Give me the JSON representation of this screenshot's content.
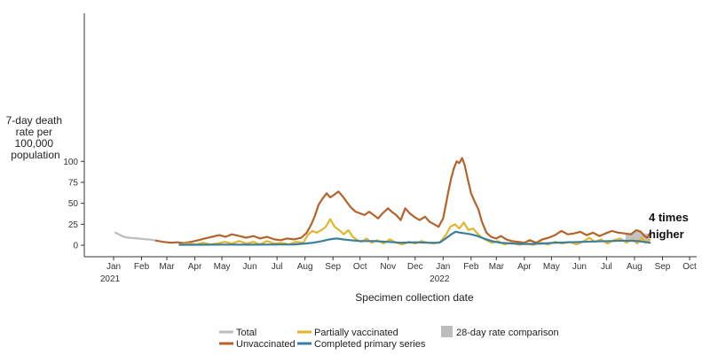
{
  "chart_data": {
    "type": "line",
    "title": "",
    "xlabel": "Specimen collection date",
    "ylabel": [
      "7-day death",
      "rate per",
      "100,000",
      "population"
    ],
    "x_range": [
      "2021-01-01",
      "2022-10-01"
    ],
    "ylim": [
      -5,
      110
    ],
    "y_ticks": [
      0,
      25,
      50,
      75,
      100
    ],
    "x_ticks": [
      {
        "date": "2021-01-01",
        "label": "Jan",
        "year": "2021"
      },
      {
        "date": "2021-02-01",
        "label": "Feb"
      },
      {
        "date": "2021-03-01",
        "label": "Mar"
      },
      {
        "date": "2021-04-01",
        "label": "Apr"
      },
      {
        "date": "2021-05-01",
        "label": "May"
      },
      {
        "date": "2021-06-01",
        "label": "Jun"
      },
      {
        "date": "2021-07-01",
        "label": "Jul"
      },
      {
        "date": "2021-08-01",
        "label": "Aug"
      },
      {
        "date": "2021-09-01",
        "label": "Sep"
      },
      {
        "date": "2021-10-01",
        "label": "Oct"
      },
      {
        "date": "2021-11-01",
        "label": "Nov"
      },
      {
        "date": "2021-12-01",
        "label": "Dec"
      },
      {
        "date": "2022-01-01",
        "label": "Jan",
        "year": "2022"
      },
      {
        "date": "2022-02-01",
        "label": "Feb"
      },
      {
        "date": "2022-03-01",
        "label": "Mar"
      },
      {
        "date": "2022-04-01",
        "label": "Apr"
      },
      {
        "date": "2022-05-01",
        "label": "May"
      },
      {
        "date": "2022-06-01",
        "label": "Jun"
      },
      {
        "date": "2022-07-01",
        "label": "Jul"
      },
      {
        "date": "2022-08-01",
        "label": "Aug"
      },
      {
        "date": "2022-09-01",
        "label": "Sep"
      },
      {
        "date": "2022-10-01",
        "label": "Oct"
      }
    ],
    "grid": false,
    "legend_position": "bottom",
    "series": [
      {
        "name": "Total",
        "color": "#bdbdbd",
        "points": [
          [
            "2021-01-03",
            15
          ],
          [
            "2021-01-07",
            13
          ],
          [
            "2021-01-10",
            11
          ],
          [
            "2021-01-14",
            9.5
          ],
          [
            "2021-01-18",
            9
          ],
          [
            "2021-01-23",
            8.5
          ],
          [
            "2021-01-28",
            8
          ],
          [
            "2021-02-02",
            7.5
          ],
          [
            "2021-02-07",
            7
          ],
          [
            "2021-02-12",
            6.5
          ],
          [
            "2021-02-17",
            5.5
          ]
        ]
      },
      {
        "name": "Unvaccinated",
        "color": "#b5622b",
        "points": [
          [
            "2021-02-17",
            5.5
          ],
          [
            "2021-02-25",
            4
          ],
          [
            "2021-03-05",
            3
          ],
          [
            "2021-03-13",
            3.5
          ],
          [
            "2021-03-20",
            2.5
          ],
          [
            "2021-03-28",
            4
          ],
          [
            "2021-04-05",
            6
          ],
          [
            "2021-04-12",
            8
          ],
          [
            "2021-04-20",
            10
          ],
          [
            "2021-04-28",
            12
          ],
          [
            "2021-05-05",
            10
          ],
          [
            "2021-05-12",
            13
          ],
          [
            "2021-05-20",
            11
          ],
          [
            "2021-05-28",
            9
          ],
          [
            "2021-06-05",
            11
          ],
          [
            "2021-06-12",
            8
          ],
          [
            "2021-06-20",
            10
          ],
          [
            "2021-06-28",
            7
          ],
          [
            "2021-07-05",
            6
          ],
          [
            "2021-07-12",
            8
          ],
          [
            "2021-07-20",
            7
          ],
          [
            "2021-07-28",
            9
          ],
          [
            "2021-08-03",
            15
          ],
          [
            "2021-08-08",
            25
          ],
          [
            "2021-08-12",
            35
          ],
          [
            "2021-08-16",
            48
          ],
          [
            "2021-08-20",
            55
          ],
          [
            "2021-08-25",
            62
          ],
          [
            "2021-08-29",
            57
          ],
          [
            "2021-09-02",
            60
          ],
          [
            "2021-09-07",
            64
          ],
          [
            "2021-09-12",
            58
          ],
          [
            "2021-09-16",
            52
          ],
          [
            "2021-09-21",
            45
          ],
          [
            "2021-09-26",
            40
          ],
          [
            "2021-10-01",
            38
          ],
          [
            "2021-10-06",
            36
          ],
          [
            "2021-10-11",
            40
          ],
          [
            "2021-10-16",
            36
          ],
          [
            "2021-10-21",
            32
          ],
          [
            "2021-10-26",
            38
          ],
          [
            "2021-11-01",
            44
          ],
          [
            "2021-11-05",
            40
          ],
          [
            "2021-11-10",
            36
          ],
          [
            "2021-11-15",
            30
          ],
          [
            "2021-11-20",
            44
          ],
          [
            "2021-11-25",
            38
          ],
          [
            "2021-12-01",
            33
          ],
          [
            "2021-12-06",
            30
          ],
          [
            "2021-12-12",
            34
          ],
          [
            "2021-12-17",
            28
          ],
          [
            "2021-12-22",
            25
          ],
          [
            "2021-12-27",
            22
          ],
          [
            "2022-01-01",
            32
          ],
          [
            "2022-01-04",
            48
          ],
          [
            "2022-01-07",
            65
          ],
          [
            "2022-01-10",
            80
          ],
          [
            "2022-01-13",
            92
          ],
          [
            "2022-01-16",
            100
          ],
          [
            "2022-01-19",
            98
          ],
          [
            "2022-01-22",
            104
          ],
          [
            "2022-01-25",
            95
          ],
          [
            "2022-01-28",
            80
          ],
          [
            "2022-02-01",
            62
          ],
          [
            "2022-02-05",
            52
          ],
          [
            "2022-02-09",
            43
          ],
          [
            "2022-02-13",
            28
          ],
          [
            "2022-02-18",
            15
          ],
          [
            "2022-02-23",
            10
          ],
          [
            "2022-03-01",
            8
          ],
          [
            "2022-03-06",
            11
          ],
          [
            "2022-03-12",
            7
          ],
          [
            "2022-03-18",
            5
          ],
          [
            "2022-03-25",
            4
          ],
          [
            "2022-04-01",
            3
          ],
          [
            "2022-04-07",
            6
          ],
          [
            "2022-04-14",
            3
          ],
          [
            "2022-04-21",
            7
          ],
          [
            "2022-04-28",
            9
          ],
          [
            "2022-05-05",
            12
          ],
          [
            "2022-05-12",
            17
          ],
          [
            "2022-05-19",
            13
          ],
          [
            "2022-05-26",
            14
          ],
          [
            "2022-06-02",
            16
          ],
          [
            "2022-06-09",
            12
          ],
          [
            "2022-06-16",
            15
          ],
          [
            "2022-06-23",
            11
          ],
          [
            "2022-06-30",
            14
          ],
          [
            "2022-07-07",
            17
          ],
          [
            "2022-07-14",
            15
          ],
          [
            "2022-07-21",
            14
          ],
          [
            "2022-07-28",
            13
          ],
          [
            "2022-08-03",
            18
          ],
          [
            "2022-08-08",
            16
          ],
          [
            "2022-08-12",
            11
          ],
          [
            "2022-08-15",
            9
          ],
          [
            "2022-08-18",
            14
          ]
        ]
      },
      {
        "name": "Partially vaccinated",
        "color": "#e3b52c",
        "points": [
          [
            "2021-03-15",
            1
          ],
          [
            "2021-03-25",
            2
          ],
          [
            "2021-04-02",
            1
          ],
          [
            "2021-04-10",
            3
          ],
          [
            "2021-04-18",
            1
          ],
          [
            "2021-04-26",
            2
          ],
          [
            "2021-05-04",
            4
          ],
          [
            "2021-05-12",
            2
          ],
          [
            "2021-05-20",
            5
          ],
          [
            "2021-05-28",
            2
          ],
          [
            "2021-06-05",
            4
          ],
          [
            "2021-06-12",
            1
          ],
          [
            "2021-06-20",
            5
          ],
          [
            "2021-06-28",
            2
          ],
          [
            "2021-07-06",
            3
          ],
          [
            "2021-07-14",
            1
          ],
          [
            "2021-07-22",
            4
          ],
          [
            "2021-07-30",
            3
          ],
          [
            "2021-08-04",
            12
          ],
          [
            "2021-08-09",
            17
          ],
          [
            "2021-08-14",
            15
          ],
          [
            "2021-08-19",
            18
          ],
          [
            "2021-08-24",
            22
          ],
          [
            "2021-08-29",
            31
          ],
          [
            "2021-09-03",
            22
          ],
          [
            "2021-09-08",
            18
          ],
          [
            "2021-09-13",
            13
          ],
          [
            "2021-09-18",
            18
          ],
          [
            "2021-09-23",
            10
          ],
          [
            "2021-09-28",
            6
          ],
          [
            "2021-10-03",
            4
          ],
          [
            "2021-10-08",
            8
          ],
          [
            "2021-10-14",
            3
          ],
          [
            "2021-10-20",
            6
          ],
          [
            "2021-10-27",
            2
          ],
          [
            "2021-11-03",
            7
          ],
          [
            "2021-11-10",
            3
          ],
          [
            "2021-11-17",
            1
          ],
          [
            "2021-11-24",
            4
          ],
          [
            "2021-12-01",
            2
          ],
          [
            "2021-12-08",
            5
          ],
          [
            "2021-12-15",
            3
          ],
          [
            "2021-12-22",
            2
          ],
          [
            "2021-12-29",
            4
          ],
          [
            "2022-01-04",
            12
          ],
          [
            "2022-01-09",
            22
          ],
          [
            "2022-01-14",
            25
          ],
          [
            "2022-01-19",
            20
          ],
          [
            "2022-01-24",
            27
          ],
          [
            "2022-01-29",
            18
          ],
          [
            "2022-02-03",
            20
          ],
          [
            "2022-02-08",
            14
          ],
          [
            "2022-02-13",
            9
          ],
          [
            "2022-02-18",
            6
          ],
          [
            "2022-02-24",
            3
          ],
          [
            "2022-03-03",
            5
          ],
          [
            "2022-03-10",
            1
          ],
          [
            "2022-03-18",
            3
          ],
          [
            "2022-03-26",
            0.5
          ],
          [
            "2022-04-03",
            2
          ],
          [
            "2022-04-11",
            0.5
          ],
          [
            "2022-04-19",
            3
          ],
          [
            "2022-04-27",
            1
          ],
          [
            "2022-05-05",
            4
          ],
          [
            "2022-05-13",
            2
          ],
          [
            "2022-05-21",
            4
          ],
          [
            "2022-05-29",
            1
          ],
          [
            "2022-06-06",
            5
          ],
          [
            "2022-06-12",
            9
          ],
          [
            "2022-06-18",
            4
          ],
          [
            "2022-06-25",
            7
          ],
          [
            "2022-07-02",
            2
          ],
          [
            "2022-07-09",
            6
          ],
          [
            "2022-07-16",
            8
          ],
          [
            "2022-07-23",
            3
          ],
          [
            "2022-07-30",
            7
          ],
          [
            "2022-08-04",
            2
          ],
          [
            "2022-08-09",
            9
          ],
          [
            "2022-08-13",
            3
          ],
          [
            "2022-08-18",
            6
          ]
        ]
      },
      {
        "name": "Completed primary series",
        "color": "#3a7ea1",
        "points": [
          [
            "2021-03-15",
            0.5
          ],
          [
            "2021-04-01",
            0.5
          ],
          [
            "2021-05-01",
            0.7
          ],
          [
            "2021-06-01",
            0.6
          ],
          [
            "2021-07-01",
            0.8
          ],
          [
            "2021-07-20",
            1
          ],
          [
            "2021-08-01",
            2
          ],
          [
            "2021-08-10",
            3
          ],
          [
            "2021-08-20",
            5
          ],
          [
            "2021-08-28",
            7
          ],
          [
            "2021-09-05",
            8
          ],
          [
            "2021-09-12",
            7
          ],
          [
            "2021-09-20",
            6
          ],
          [
            "2021-10-01",
            5
          ],
          [
            "2021-10-15",
            5
          ],
          [
            "2021-11-01",
            4
          ],
          [
            "2021-11-15",
            3
          ],
          [
            "2021-12-01",
            3.5
          ],
          [
            "2021-12-15",
            3
          ],
          [
            "2021-12-28",
            3
          ],
          [
            "2022-01-04",
            8
          ],
          [
            "2022-01-10",
            13
          ],
          [
            "2022-01-15",
            16
          ],
          [
            "2022-01-20",
            15
          ],
          [
            "2022-01-26",
            14
          ],
          [
            "2022-02-01",
            13
          ],
          [
            "2022-02-08",
            11
          ],
          [
            "2022-02-15",
            8
          ],
          [
            "2022-02-24",
            5
          ],
          [
            "2022-03-05",
            3
          ],
          [
            "2022-03-20",
            2
          ],
          [
            "2022-04-05",
            1.5
          ],
          [
            "2022-04-20",
            2
          ],
          [
            "2022-05-05",
            3
          ],
          [
            "2022-05-20",
            3.5
          ],
          [
            "2022-06-05",
            4
          ],
          [
            "2022-06-20",
            4.5
          ],
          [
            "2022-07-05",
            5
          ],
          [
            "2022-07-20",
            5.5
          ],
          [
            "2022-08-05",
            5
          ],
          [
            "2022-08-18",
            3
          ]
        ]
      }
    ],
    "comparison_band": {
      "name": "28-day rate comparison",
      "color": "#bdbdbd",
      "upper": [
        [
          "2022-07-22",
          13
        ],
        [
          "2022-07-29",
          15
        ],
        [
          "2022-08-05",
          18
        ],
        [
          "2022-08-12",
          14
        ],
        [
          "2022-08-18",
          14
        ]
      ],
      "lower": [
        [
          "2022-07-22",
          5
        ],
        [
          "2022-07-29",
          5.5
        ],
        [
          "2022-08-05",
          5
        ],
        [
          "2022-08-12",
          4
        ],
        [
          "2022-08-18",
          3
        ]
      ]
    },
    "annotation": {
      "line1": "4 times",
      "line2": "higher"
    }
  }
}
